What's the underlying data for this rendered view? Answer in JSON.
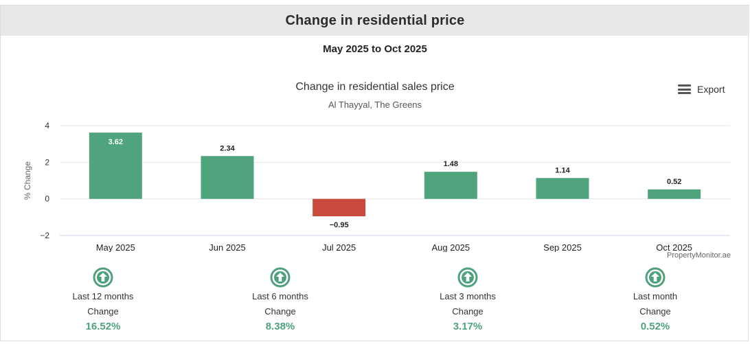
{
  "header": {
    "title": "Change in residential price"
  },
  "period": "May 2025 to Oct 2025",
  "export_label": "Export",
  "credit": "PropertyMonitor.ae",
  "colors": {
    "positive": "#4fa47d",
    "negative": "#c84b3d",
    "stat_value": "#4fa17c"
  },
  "chart_data": {
    "type": "bar",
    "title": "Change in residential sales price",
    "subtitle": "Al Thayyal, The Greens",
    "xlabel": "",
    "ylabel": "% Change",
    "ylim": [
      -2,
      4
    ],
    "yticks": [
      4,
      2,
      0,
      -2
    ],
    "ytick_labels": [
      "4",
      "2",
      "0",
      "−2"
    ],
    "categories": [
      "May 2025",
      "Jun 2025",
      "Jul 2025",
      "Aug 2025",
      "Sep 2025",
      "Oct 2025"
    ],
    "values": [
      3.62,
      2.34,
      -0.95,
      1.48,
      1.14,
      0.52
    ],
    "value_labels": [
      "3.62",
      "2.34",
      "−0.95",
      "1.48",
      "1.14",
      "0.52"
    ],
    "grid": true,
    "legend": "none"
  },
  "stats": [
    {
      "label": "Last 12 months",
      "change_label": "Change",
      "value": "16.52%",
      "icon": "up-arrow-circle-icon"
    },
    {
      "label": "Last 6 months",
      "change_label": "Change",
      "value": "8.38%",
      "icon": "up-arrow-circle-icon"
    },
    {
      "label": "Last 3 months",
      "change_label": "Change",
      "value": "3.17%",
      "icon": "up-arrow-circle-icon"
    },
    {
      "label": "Last month",
      "change_label": "Change",
      "value": "0.52%",
      "icon": "up-arrow-circle-icon"
    }
  ]
}
